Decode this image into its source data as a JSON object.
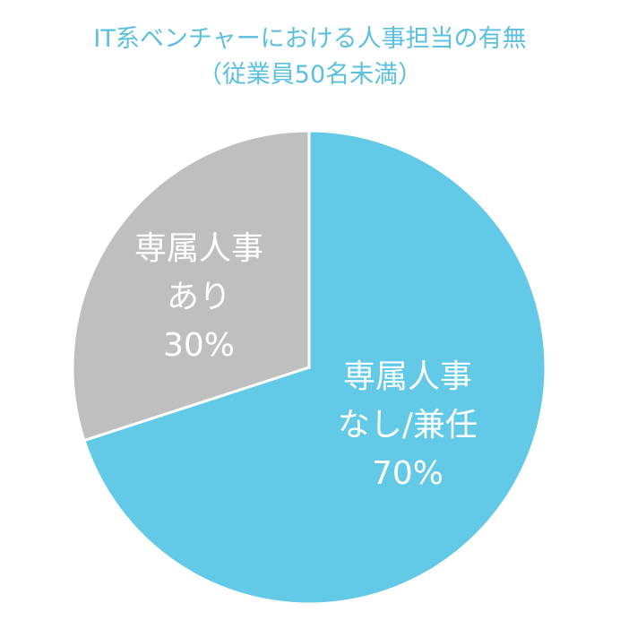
{
  "chart_data": {
    "type": "pie",
    "title": "IT系ベンチャーにおける人事担当の有無",
    "subtitle": "（従業員50名未満）",
    "start_angle_deg": 0,
    "direction": "clockwise",
    "slices": [
      {
        "label_lines": [
          "専属人事",
          "なし/兼任",
          "70%"
        ],
        "value": 70,
        "color": "#62c9e6"
      },
      {
        "label_lines": [
          "専属人事",
          "あり",
          "30%"
        ],
        "value": 30,
        "color": "#bfbfbf"
      }
    ]
  }
}
